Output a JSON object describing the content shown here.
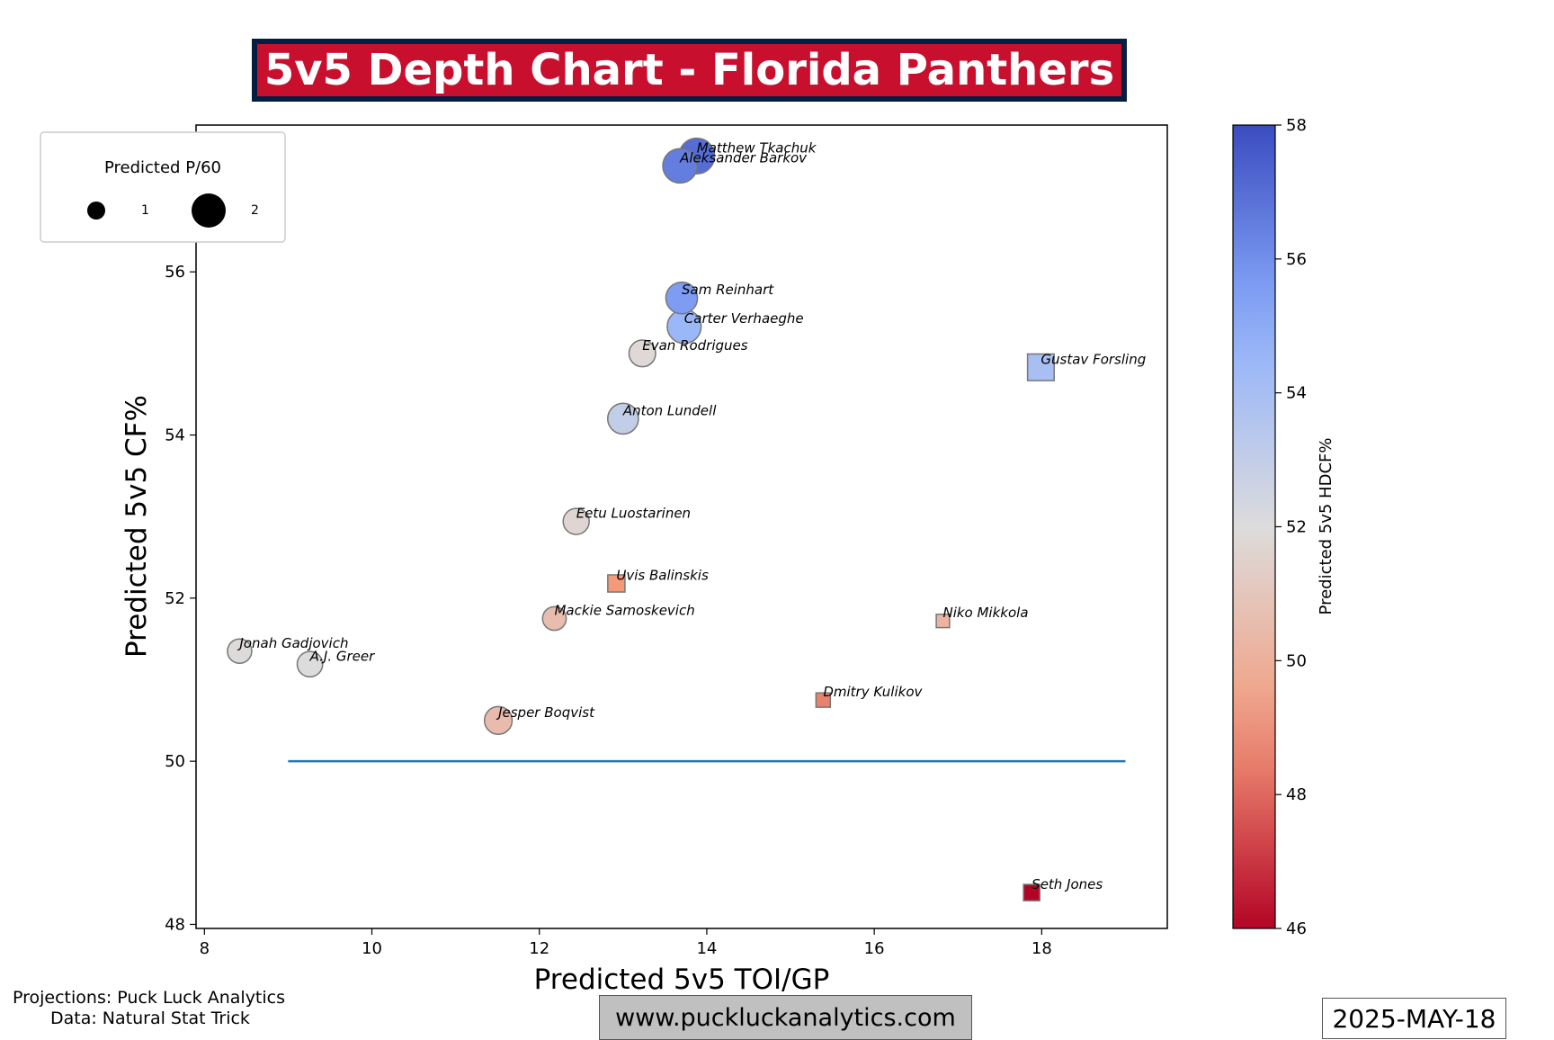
{
  "header": {
    "title": "5v5 Depth Chart - Florida Panthers"
  },
  "footer": {
    "credit_projections": "Projections: Puck Luck Analytics",
    "credit_data": "Data: Natural Stat Trick",
    "website": "www.puckluckanalytics.com",
    "date": "2025-MAY-18"
  },
  "colors": {
    "title_bg": "#c8102e",
    "title_border": "#041e42",
    "reference_line": "#1f77b4"
  },
  "chart_data": {
    "type": "scatter",
    "xlabel": "Predicted 5v5 TOI/GP",
    "ylabel": "Predicted 5v5 CF%",
    "xlim": [
      7.9,
      19.5
    ],
    "ylim": [
      47.95,
      57.8
    ],
    "x_ticks": [
      8,
      10,
      12,
      14,
      16,
      18
    ],
    "y_ticks": [
      48,
      50,
      52,
      54,
      56
    ],
    "grid": false,
    "reference_line": {
      "x": [
        9,
        19
      ],
      "y": 50
    },
    "size_legend": {
      "title": "Predicted P/60",
      "entries": [
        1,
        2
      ],
      "placement": "upper-left"
    },
    "colorbar": {
      "label": "Predicted 5v5 HDCF%",
      "range": [
        46,
        58
      ],
      "ticks": [
        46,
        48,
        50,
        52,
        54,
        56,
        58
      ],
      "colormap": "coolwarm"
    },
    "marker_legend": {
      "forward": "circle",
      "defense": "square"
    },
    "points": [
      {
        "name": "Matthew Tkachuk",
        "toi": 13.88,
        "cf": 57.42,
        "p60": 2.15,
        "hdcf": 57.0,
        "position": "F"
      },
      {
        "name": "Aleksander Barkov",
        "toi": 13.68,
        "cf": 57.3,
        "p60": 2.0,
        "hdcf": 56.5,
        "position": "F"
      },
      {
        "name": "Sam Reinhart",
        "toi": 13.7,
        "cf": 55.68,
        "p60": 1.7,
        "hdcf": 55.6,
        "position": "F"
      },
      {
        "name": "Carter Verhaeghe",
        "toi": 13.73,
        "cf": 55.33,
        "p60": 1.95,
        "hdcf": 54.5,
        "position": "F"
      },
      {
        "name": "Evan Rodrigues",
        "toi": 13.23,
        "cf": 55.0,
        "p60": 1.2,
        "hdcf": 51.8,
        "position": "F"
      },
      {
        "name": "Gustav Forsling",
        "toi": 17.99,
        "cf": 54.83,
        "p60": 1.2,
        "hdcf": 54.0,
        "position": "D"
      },
      {
        "name": "Anton Lundell",
        "toi": 13.0,
        "cf": 54.2,
        "p60": 1.6,
        "hdcf": 53.0,
        "position": "F"
      },
      {
        "name": "Eetu Luostarinen",
        "toi": 12.44,
        "cf": 52.94,
        "p60": 1.15,
        "hdcf": 51.7,
        "position": "F"
      },
      {
        "name": "Uvis Balinskis",
        "toi": 12.92,
        "cf": 52.18,
        "p60": 0.5,
        "hdcf": 49.0,
        "position": "D"
      },
      {
        "name": "Mackie Samoskevich",
        "toi": 12.18,
        "cf": 51.75,
        "p60": 0.95,
        "hdcf": 50.6,
        "position": "F"
      },
      {
        "name": "Niko Mikkola",
        "toi": 16.82,
        "cf": 51.72,
        "p60": 0.3,
        "hdcf": 50.2,
        "position": "D"
      },
      {
        "name": "Jonah Gadjovich",
        "toi": 8.42,
        "cf": 51.35,
        "p60": 1.0,
        "hdcf": 51.9,
        "position": "F"
      },
      {
        "name": "A.J. Greer",
        "toi": 9.26,
        "cf": 51.19,
        "p60": 1.1,
        "hdcf": 52.0,
        "position": "F"
      },
      {
        "name": "Dmitry Kulikov",
        "toi": 15.39,
        "cf": 50.75,
        "p60": 0.35,
        "hdcf": 48.5,
        "position": "D"
      },
      {
        "name": "Jesper Boqvist",
        "toi": 11.51,
        "cf": 50.5,
        "p60": 1.3,
        "hdcf": 50.5,
        "position": "F"
      },
      {
        "name": "Seth Jones",
        "toi": 17.88,
        "cf": 48.39,
        "p60": 0.45,
        "hdcf": 46.0,
        "position": "D"
      }
    ]
  }
}
